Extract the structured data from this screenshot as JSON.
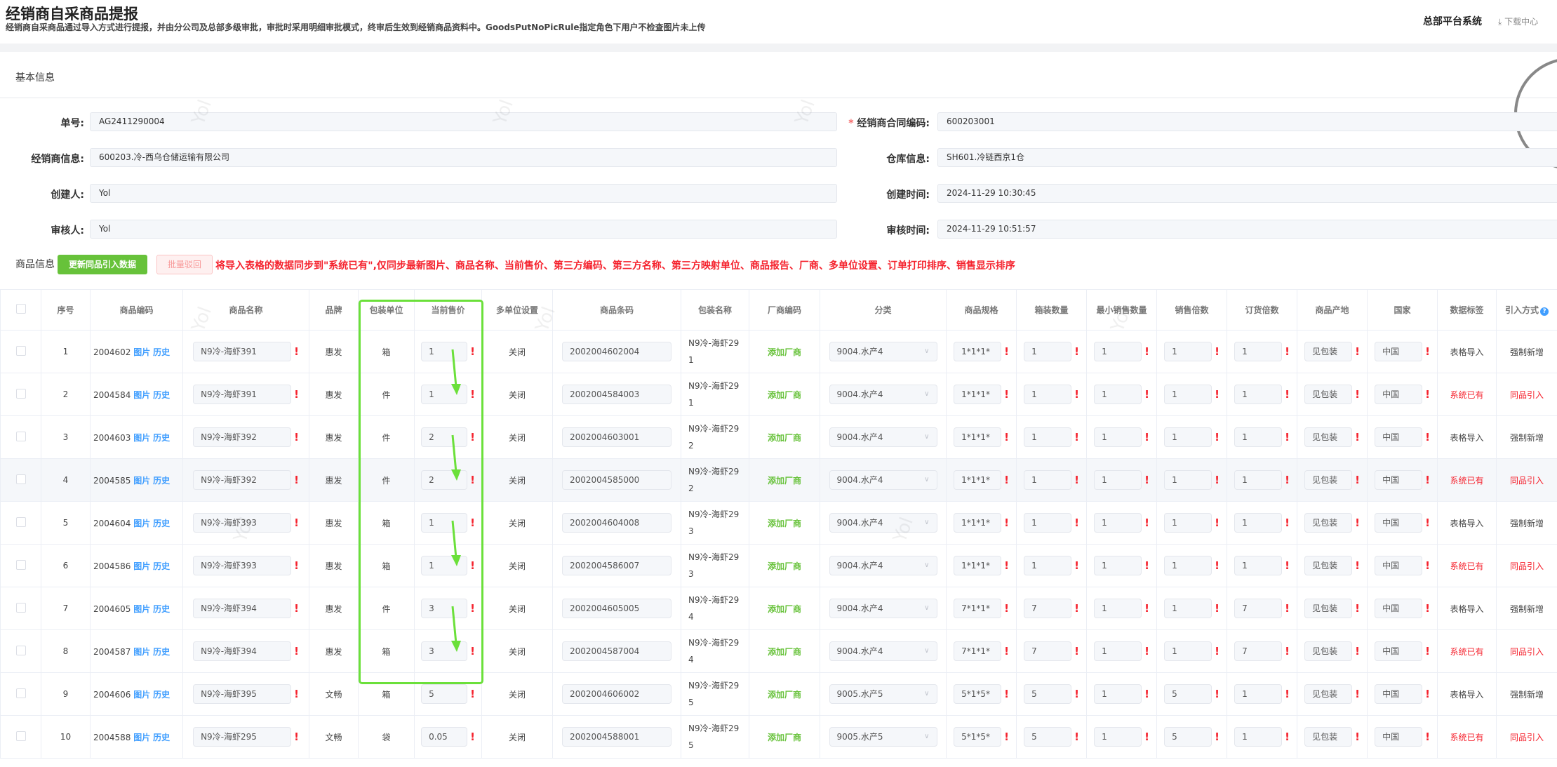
{
  "header": {
    "title": "经销商自采商品提报",
    "subtitle": "经销商自采商品通过导入方式进行提报，并由分公司及总部多级审批，审批时采用明细审批模式，终审后生效到经销商品资料中。GoodsPutNoPicRule指定角色下用户不检查图片未上传",
    "system": "总部平台系统",
    "download": "下载中心",
    "download_icon": "download-icon"
  },
  "basic": {
    "title": "基本信息",
    "left": [
      {
        "label": "单号:",
        "value": "AG2411290004"
      },
      {
        "label": "经销商信息:",
        "value": "600203.冷-西乌仓储运输有限公司"
      },
      {
        "label": "创建人:",
        "value": "Yol"
      },
      {
        "label": "审核人:",
        "value": "Yol"
      }
    ],
    "right": [
      {
        "label": "经销商合同编码:",
        "value": "600203001",
        "required": true
      },
      {
        "label": "仓库信息:",
        "value": "SH601.冷链西京1仓"
      },
      {
        "label": "创建时间:",
        "value": "2024-11-29 10:30:45"
      },
      {
        "label": "审核时间:",
        "value": "2024-11-29 10:51:57"
      }
    ]
  },
  "goods": {
    "title": "商品信息",
    "update_button": "更新同品引入数据",
    "batch_back_button": "批量驳回",
    "note": "将导入表格的数据同步到\"系统已有\",仅同步最新图片、商品名称、当前售价、第三方编码、第三方名称、第三方映射单位、商品报告、厂商、多单位设置、订单打印排序、销售显示排序"
  },
  "table": {
    "columns": [
      "序号",
      "商品编码",
      "商品名称",
      "品牌",
      "包装单位",
      "当前售价",
      "多单位设置",
      "商品条码",
      "包装名称",
      "厂商编码",
      "分类",
      "商品规格",
      "箱装数量",
      "最小销售数量",
      "销售倍数",
      "订货倍数",
      "商品产地",
      "国家",
      "数据标签",
      "引入方式"
    ],
    "link_pic": "图片",
    "link_hist": "历史",
    "add_vendor": "添加厂商",
    "multi_unit": "关闭",
    "required_mark": "!",
    "help_icon": "question-circle-icon",
    "rows": [
      {
        "no": "1",
        "code": "2004602",
        "name": "N9冷-海虾391",
        "brand": "惠发",
        "unit": "箱",
        "price": "1",
        "barcode": "2002004602004",
        "pack": "N9冷-海虾291",
        "cat": "9004.水产4",
        "spec": "1*1*1*",
        "box": "1",
        "min": "1",
        "mult": "1",
        "order": "1",
        "origin": "见包装",
        "country": "中国",
        "tag": "表格导入",
        "mode": "强制新增",
        "sys": false
      },
      {
        "no": "2",
        "code": "2004584",
        "name": "N9冷-海虾391",
        "brand": "惠发",
        "unit": "件",
        "price": "1",
        "barcode": "2002004584003",
        "pack": "N9冷-海虾291",
        "cat": "9004.水产4",
        "spec": "1*1*1*",
        "box": "1",
        "min": "1",
        "mult": "1",
        "order": "1",
        "origin": "见包装",
        "country": "中国",
        "tag": "系统已有",
        "mode": "同品引入",
        "sys": true
      },
      {
        "no": "3",
        "code": "2004603",
        "name": "N9冷-海虾392",
        "brand": "惠发",
        "unit": "件",
        "price": "2",
        "barcode": "2002004603001",
        "pack": "N9冷-海虾292",
        "cat": "9004.水产4",
        "spec": "1*1*1*",
        "box": "1",
        "min": "1",
        "mult": "1",
        "order": "1",
        "origin": "见包装",
        "country": "中国",
        "tag": "表格导入",
        "mode": "强制新增",
        "sys": false
      },
      {
        "no": "4",
        "code": "2004585",
        "name": "N9冷-海虾392",
        "brand": "惠发",
        "unit": "件",
        "price": "2",
        "barcode": "2002004585000",
        "pack": "N9冷-海虾292",
        "cat": "9004.水产4",
        "spec": "1*1*1*",
        "box": "1",
        "min": "1",
        "mult": "1",
        "order": "1",
        "origin": "见包装",
        "country": "中国",
        "tag": "系统已有",
        "mode": "同品引入",
        "sys": true
      },
      {
        "no": "5",
        "code": "2004604",
        "name": "N9冷-海虾393",
        "brand": "惠发",
        "unit": "箱",
        "price": "1",
        "barcode": "2002004604008",
        "pack": "N9冷-海虾293",
        "cat": "9004.水产4",
        "spec": "1*1*1*",
        "box": "1",
        "min": "1",
        "mult": "1",
        "order": "1",
        "origin": "见包装",
        "country": "中国",
        "tag": "表格导入",
        "mode": "强制新增",
        "sys": false
      },
      {
        "no": "6",
        "code": "2004586",
        "name": "N9冷-海虾393",
        "brand": "惠发",
        "unit": "箱",
        "price": "1",
        "barcode": "2002004586007",
        "pack": "N9冷-海虾293",
        "cat": "9004.水产4",
        "spec": "1*1*1*",
        "box": "1",
        "min": "1",
        "mult": "1",
        "order": "1",
        "origin": "见包装",
        "country": "中国",
        "tag": "系统已有",
        "mode": "同品引入",
        "sys": true
      },
      {
        "no": "7",
        "code": "2004605",
        "name": "N9冷-海虾394",
        "brand": "惠发",
        "unit": "件",
        "price": "3",
        "barcode": "2002004605005",
        "pack": "N9冷-海虾294",
        "cat": "9004.水产4",
        "spec": "7*1*1*",
        "box": "7",
        "min": "1",
        "mult": "1",
        "order": "7",
        "origin": "见包装",
        "country": "中国",
        "tag": "表格导入",
        "mode": "强制新增",
        "sys": false
      },
      {
        "no": "8",
        "code": "2004587",
        "name": "N9冷-海虾394",
        "brand": "惠发",
        "unit": "箱",
        "price": "3",
        "barcode": "2002004587004",
        "pack": "N9冷-海虾294",
        "cat": "9004.水产4",
        "spec": "7*1*1*",
        "box": "7",
        "min": "1",
        "mult": "1",
        "order": "7",
        "origin": "见包装",
        "country": "中国",
        "tag": "系统已有",
        "mode": "同品引入",
        "sys": true
      },
      {
        "no": "9",
        "code": "2004606",
        "name": "N9冷-海虾395",
        "brand": "文畅",
        "unit": "箱",
        "price": "5",
        "barcode": "2002004606002",
        "pack": "N9冷-海虾295",
        "cat": "9005.水产5",
        "spec": "5*1*5*",
        "box": "5",
        "min": "1",
        "mult": "5",
        "order": "1",
        "origin": "见包装",
        "country": "中国",
        "tag": "表格导入",
        "mode": "强制新增",
        "sys": false
      },
      {
        "no": "10",
        "code": "2004588",
        "name": "N9冷-海虾295",
        "brand": "文畅",
        "unit": "袋",
        "price": "0.05",
        "barcode": "2002004588001",
        "pack": "N9冷-海虾295",
        "cat": "9005.水产5",
        "spec": "5*1*5*",
        "box": "5",
        "min": "1",
        "mult": "5",
        "order": "1",
        "origin": "见包装",
        "country": "中国",
        "tag": "系统已有",
        "mode": "同品引入",
        "sys": true
      }
    ]
  },
  "watermark": "Yol",
  "colors": {
    "green": "#67c23a",
    "red": "#f5222d",
    "link": "#409eff",
    "annotation": "#6be03a"
  }
}
